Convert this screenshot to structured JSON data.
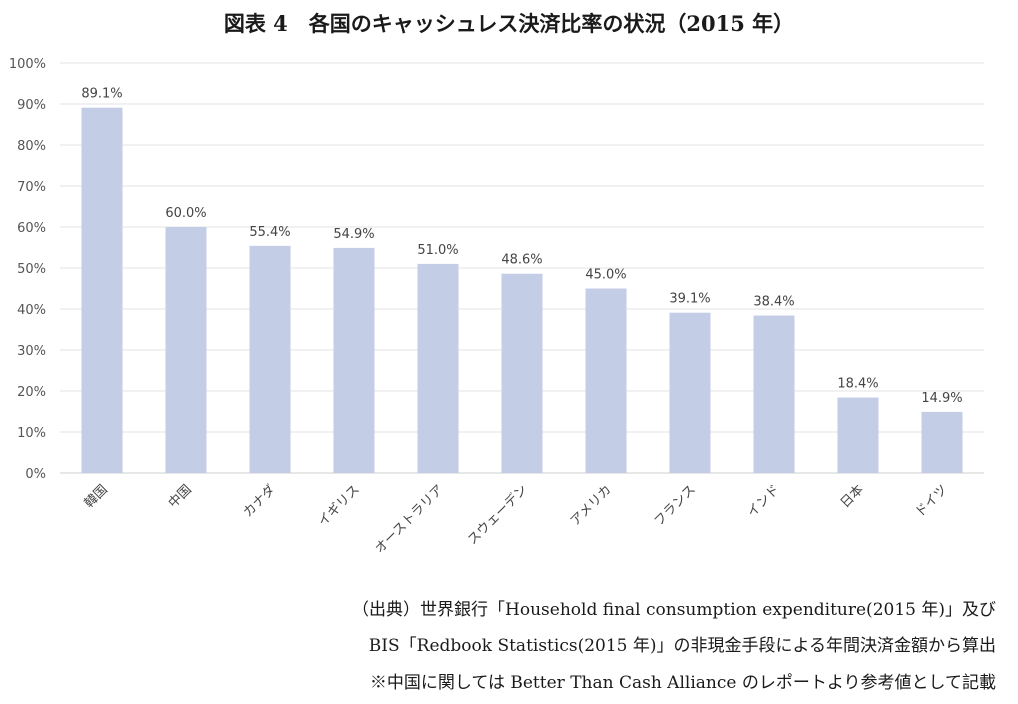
{
  "title": "図表 4　各国のキャッシュレス決済比率の状況（2015 年）",
  "chart_data": {
    "type": "bar",
    "categories": [
      "韓国",
      "中国",
      "カナダ",
      "イギリス",
      "オーストラリア",
      "スウェーデン",
      "アメリカ",
      "フランス",
      "インド",
      "日本",
      "ドイツ"
    ],
    "values": [
      89.1,
      60.0,
      55.4,
      54.9,
      51.0,
      48.6,
      45.0,
      39.1,
      38.4,
      18.4,
      14.9
    ],
    "value_labels": [
      "89.1%",
      "60.0%",
      "55.4%",
      "54.9%",
      "51.0%",
      "48.6%",
      "45.0%",
      "39.1%",
      "38.4%",
      "18.4%",
      "14.9%"
    ],
    "ylim": [
      0,
      100
    ],
    "yticks": [
      0,
      10,
      20,
      30,
      40,
      50,
      60,
      70,
      80,
      90,
      100
    ],
    "ytick_labels": [
      "0%",
      "10%",
      "20%",
      "30%",
      "40%",
      "50%",
      "60%",
      "70%",
      "80%",
      "90%",
      "100%"
    ],
    "grid": true,
    "bar_color": "#c3cee6",
    "gridline_color": "#e3e3e3"
  },
  "source": {
    "line1": "（出典）世界銀行「Household final consumption expenditure(2015 年)」及び",
    "line2": "BIS「Redbook Statistics(2015 年)」の非現金手段による年間決済金額から算出",
    "line3": "※中国に関しては Better Than Cash Alliance のレポートより参考値として記載"
  }
}
